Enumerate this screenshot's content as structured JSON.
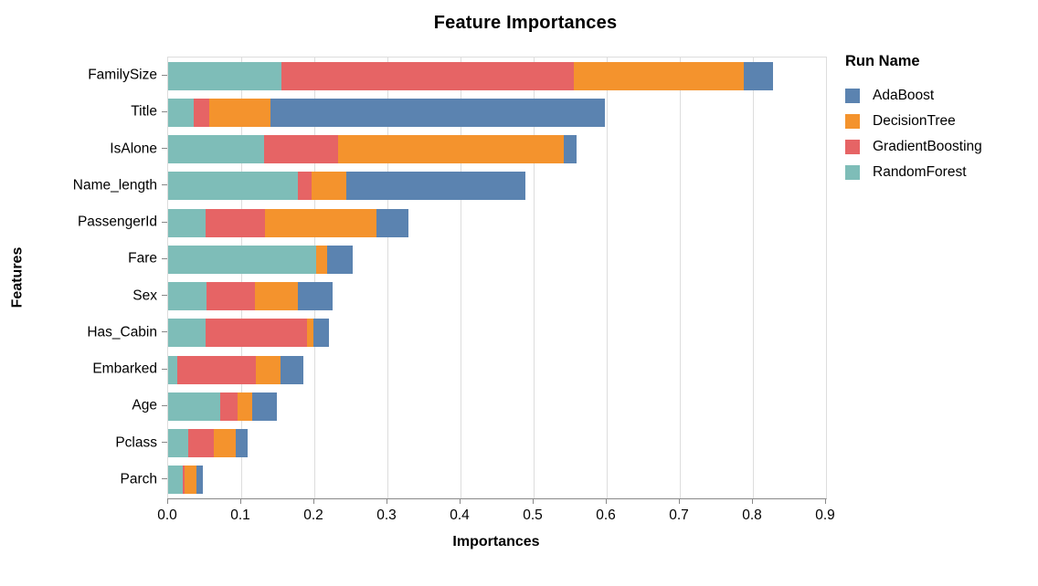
{
  "chart_data": {
    "type": "bar",
    "orientation": "horizontal",
    "stacked": true,
    "title": "Feature Importances",
    "xlabel": "Importances",
    "ylabel": "Features",
    "legend_title": "Run Name",
    "legend_position": "right",
    "grid": true,
    "xlim": [
      0.0,
      0.9
    ],
    "x_ticks": [
      "0.0",
      "0.1",
      "0.2",
      "0.3",
      "0.4",
      "0.5",
      "0.6",
      "0.7",
      "0.8",
      "0.9"
    ],
    "categories": [
      "FamilySize",
      "Title",
      "IsAlone",
      "Name_length",
      "PassengerId",
      "Fare",
      "Sex",
      "Has_Cabin",
      "Embarked",
      "Age",
      "Pclass",
      "Parch"
    ],
    "series": [
      {
        "name": "AdaBoost",
        "color": "#5b83b0",
        "values": [
          0.04,
          0.457,
          0.018,
          0.245,
          0.044,
          0.035,
          0.047,
          0.021,
          0.031,
          0.034,
          0.017,
          0.009
        ]
      },
      {
        "name": "DecisionTree",
        "color": "#f4932d",
        "values": [
          0.233,
          0.084,
          0.309,
          0.048,
          0.153,
          0.016,
          0.059,
          0.009,
          0.034,
          0.02,
          0.03,
          0.016
        ]
      },
      {
        "name": "GradientBoosting",
        "color": "#e66465",
        "values": [
          0.4,
          0.021,
          0.101,
          0.019,
          0.081,
          0.0,
          0.066,
          0.139,
          0.108,
          0.024,
          0.034,
          0.003
        ]
      },
      {
        "name": "RandomForest",
        "color": "#7ebdb8",
        "values": [
          0.155,
          0.035,
          0.131,
          0.177,
          0.051,
          0.202,
          0.053,
          0.051,
          0.012,
          0.071,
          0.028,
          0.02
        ]
      }
    ],
    "stack_order": [
      "RandomForest",
      "GradientBoosting",
      "DecisionTree",
      "AdaBoost"
    ],
    "colors": {
      "grid": "#dddddd",
      "axis": "#888888",
      "text": "#000000"
    }
  }
}
